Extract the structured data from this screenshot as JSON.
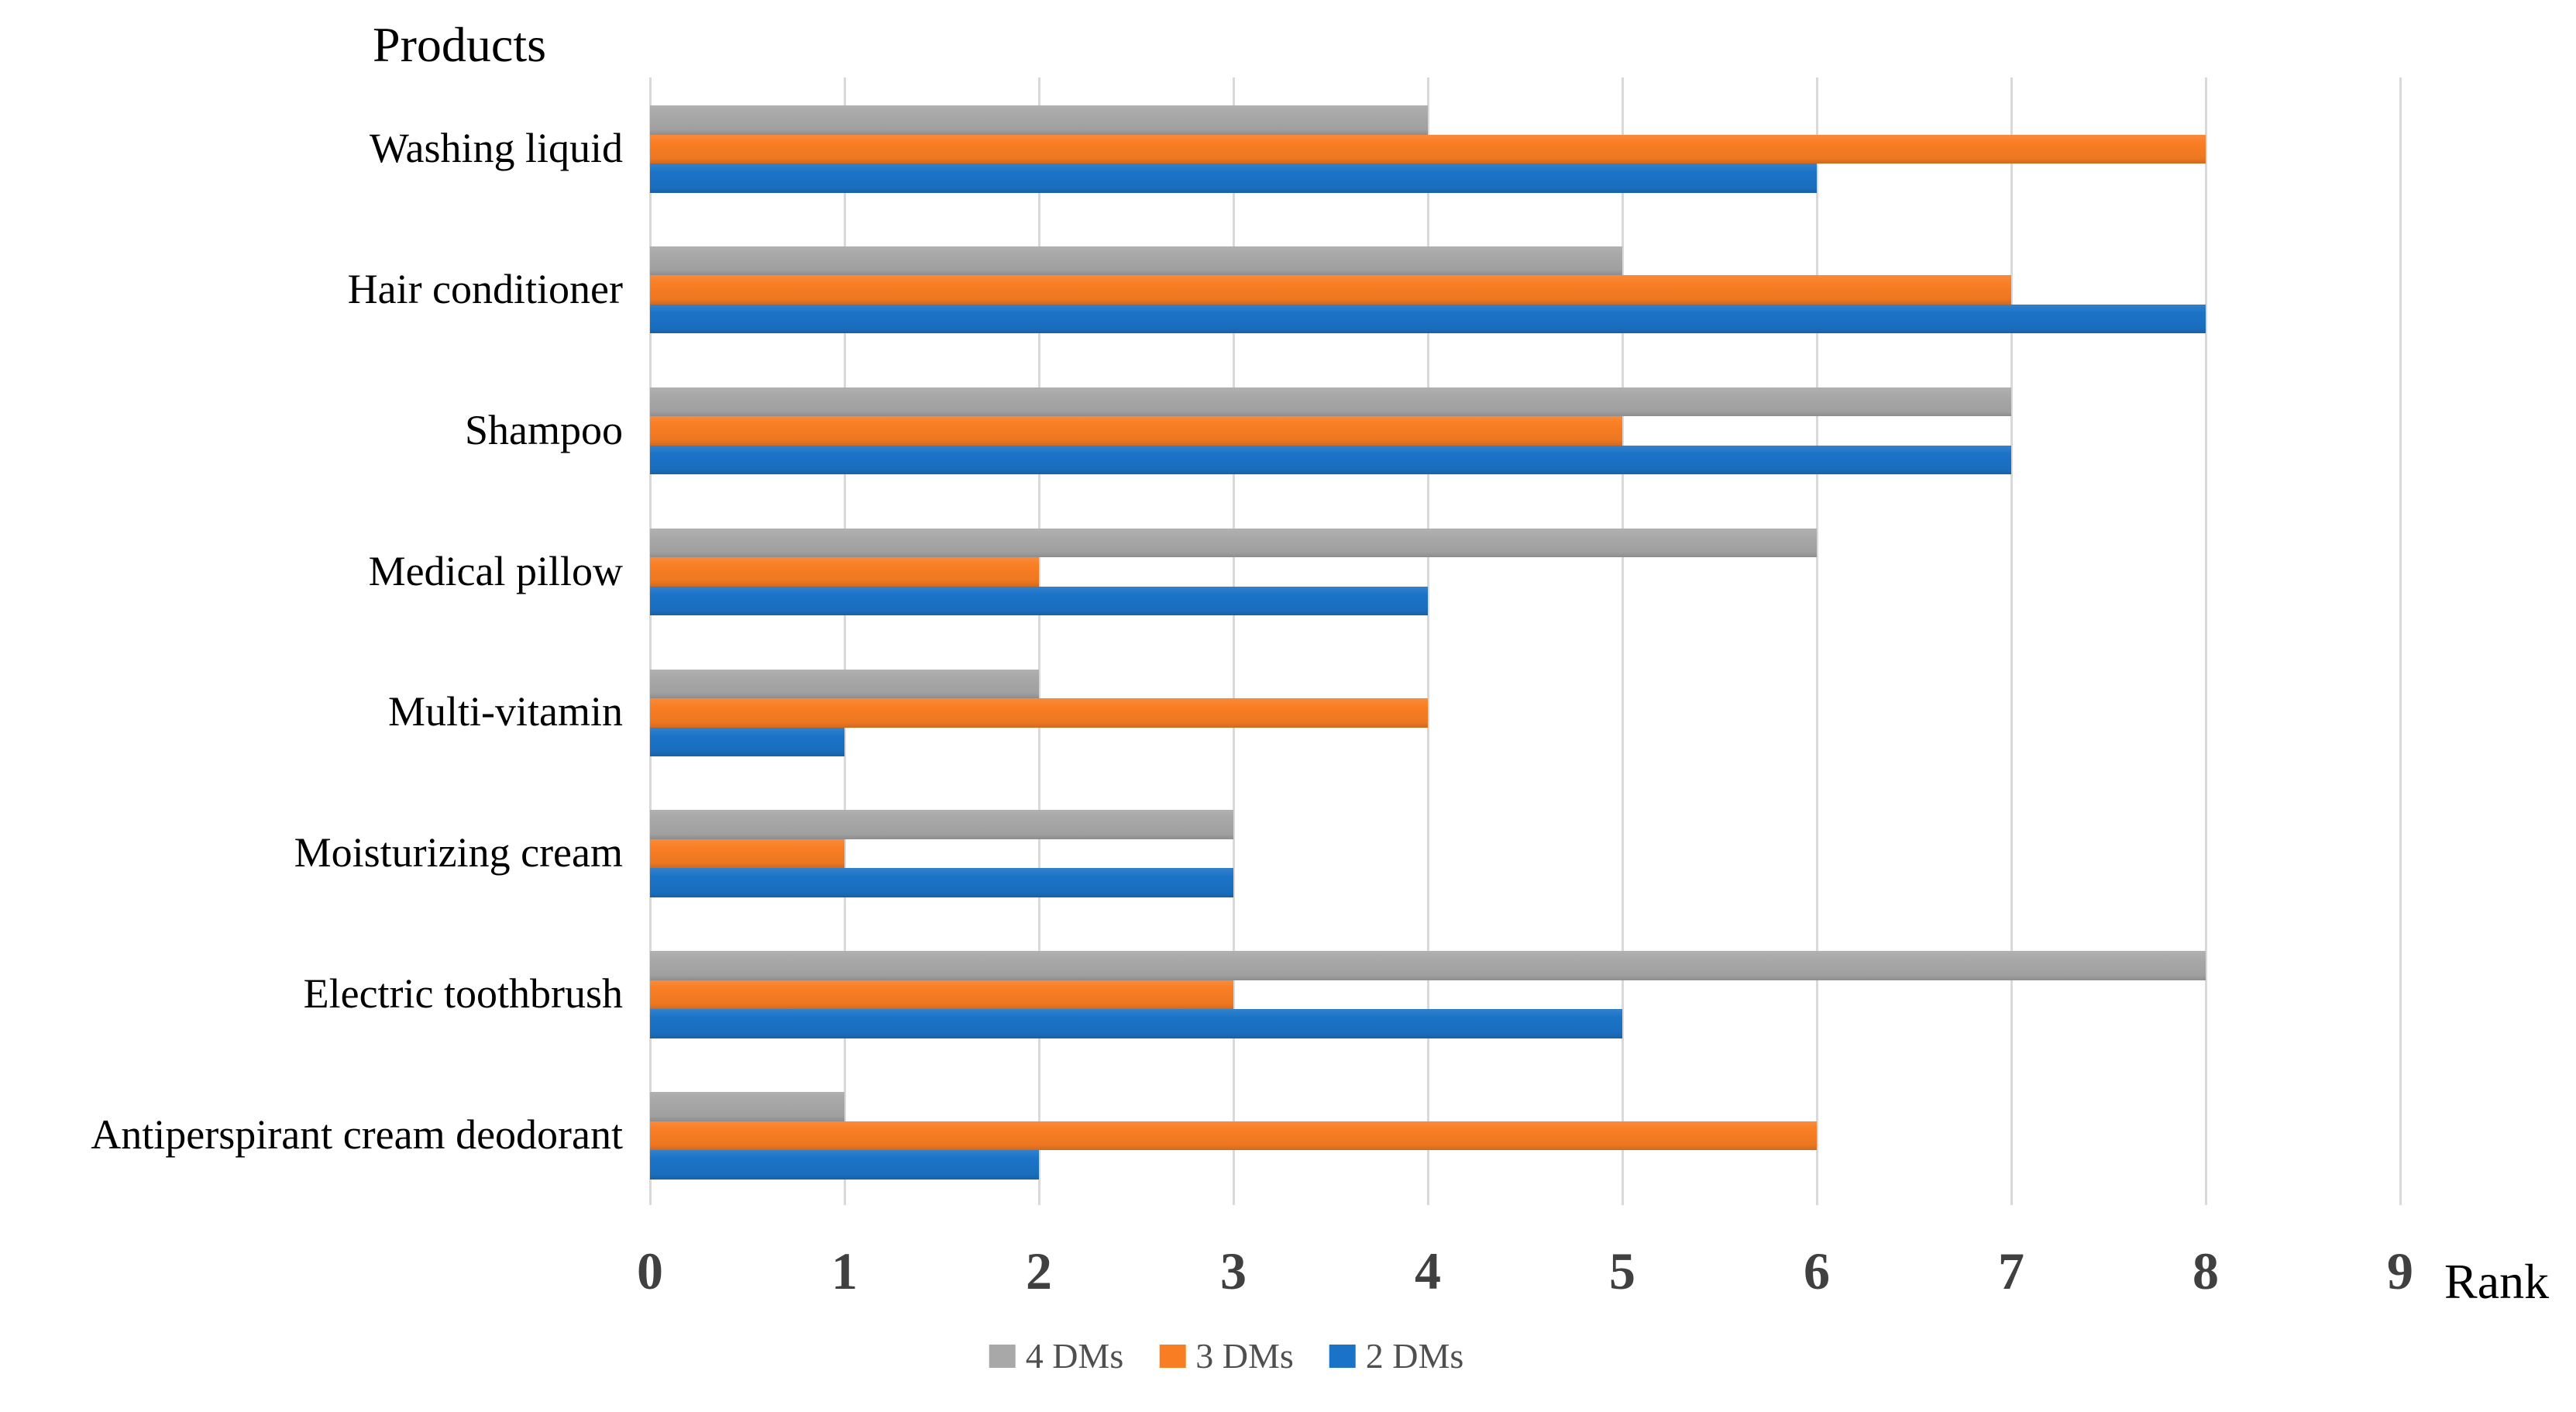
{
  "chart_data": {
    "type": "bar",
    "orientation": "horizontal",
    "title": "Products",
    "xlabel": "Rank",
    "xlim": [
      0,
      9
    ],
    "x_ticks": [
      "0",
      "1",
      "2",
      "3",
      "4",
      "5",
      "6",
      "7",
      "8",
      "9"
    ],
    "grid": true,
    "legend_position": "bottom",
    "categories": [
      "Washing liquid",
      "Hair conditioner",
      "Shampoo",
      "Medical pillow",
      "Multi-vitamin",
      "Moisturizing cream",
      "Electric toothbrush",
      "Antiperspirant cream deodorant"
    ],
    "series": [
      {
        "name": "4 DMs",
        "color": "#A8A8A8",
        "values": [
          4,
          5,
          7,
          6,
          2,
          3,
          8,
          1
        ]
      },
      {
        "name": "3 DMs",
        "color": "#F97D23",
        "values": [
          8,
          7,
          5,
          2,
          4,
          1,
          3,
          6
        ]
      },
      {
        "name": "2 DMs",
        "color": "#1B73C7",
        "values": [
          6,
          8,
          7,
          4,
          1,
          3,
          5,
          2
        ]
      }
    ]
  },
  "style": {
    "background": "#FFFFFF",
    "gridline_color": "#D9D9D9",
    "tick_label_color": "#404040",
    "category_label_color": "#000000",
    "axis_title_color": "#000000",
    "title_color": "#000000",
    "legend_text_color": "#4F4F4F"
  }
}
